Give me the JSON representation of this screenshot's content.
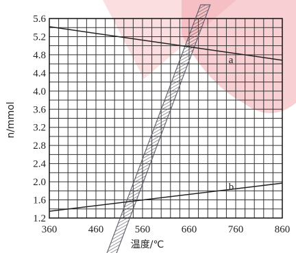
{
  "chart_data": {
    "type": "line",
    "xlabel": "温度/℃",
    "ylabel": "n/mmol",
    "xlim": [
      360,
      860
    ],
    "ylim": [
      1.2,
      5.6
    ],
    "x_ticks": [
      360,
      460,
      560,
      660,
      760,
      860
    ],
    "y_ticks": [
      1.2,
      1.6,
      2.0,
      2.4,
      2.8,
      3.2,
      3.6,
      4.0,
      4.4,
      4.8,
      5.2,
      5.6
    ],
    "grid": true,
    "series": [
      {
        "name": "a",
        "x": [
          360,
          860
        ],
        "y": [
          5.42,
          4.68
        ]
      },
      {
        "name": "b",
        "x": [
          360,
          860
        ],
        "y": [
          1.35,
          1.97
        ]
      },
      {
        "name": "",
        "style": "hatched-band",
        "x": [
          490,
          695
        ],
        "y": [
          1.15,
          5.6
        ]
      }
    ],
    "colors": {
      "line": "#222222",
      "grid": "#333333",
      "band": "#555566",
      "watermark": "#f2a0a8"
    }
  }
}
